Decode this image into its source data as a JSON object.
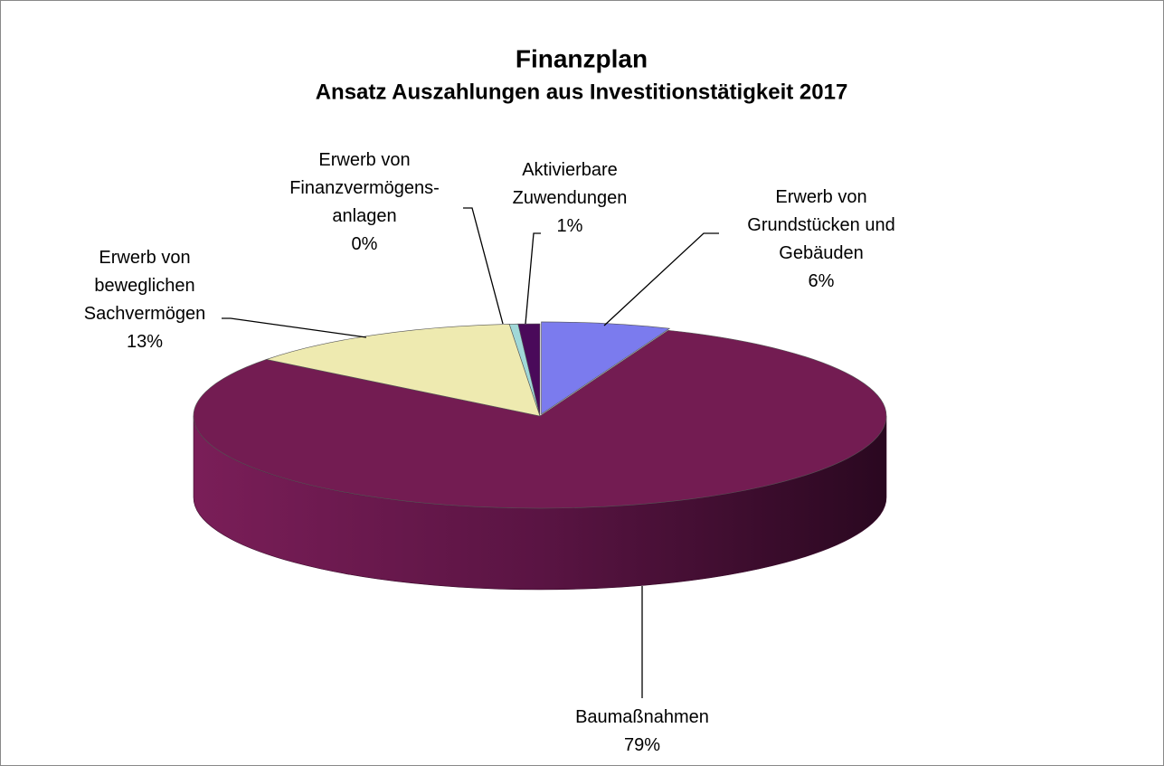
{
  "chart_data": {
    "type": "pie3d",
    "title": "Finanzplan",
    "subtitle": "Ansatz Auszahlungen aus Investitionstätigkeit 2017",
    "categories": [
      "Erwerb von\nGrundstücken und\nGebäuden",
      "Baumaßnahmen",
      "Erwerb von\nbeweglichen\nSachvermögen",
      "Erwerb von\nFinanzvermögens-\nanlagen",
      "Aktivierbare\nZuwendungen"
    ],
    "values": [
      6,
      79,
      13,
      0.4,
      1
    ],
    "value_labels": [
      "6%",
      "79%",
      "13%",
      "0%",
      "1%"
    ],
    "colors": [
      "#7b7bee",
      "#731c52",
      "#eeeab0",
      "#a0d8d8",
      "#4a0a5a"
    ]
  }
}
